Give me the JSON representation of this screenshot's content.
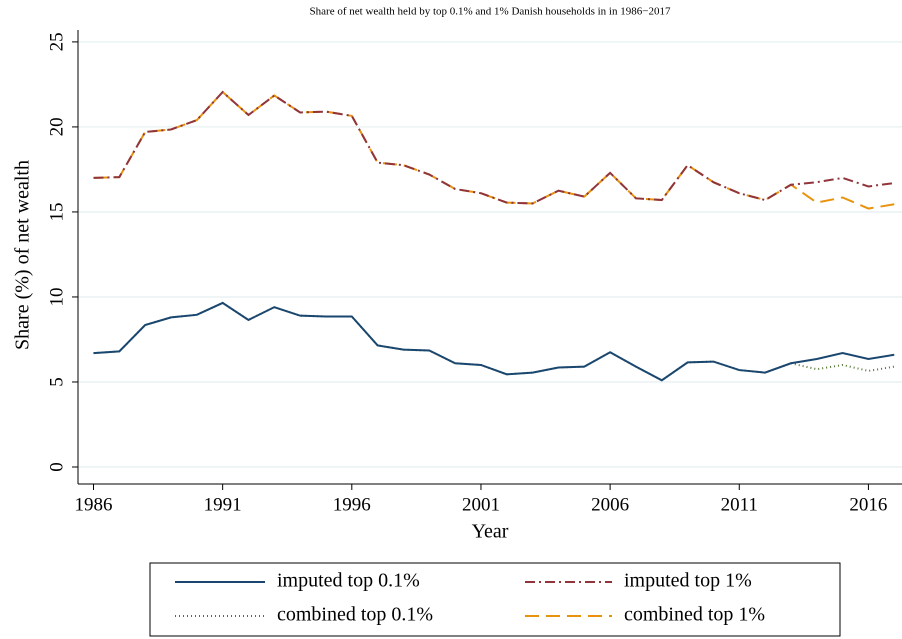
{
  "chart_data": {
    "type": "line",
    "title": "Share of net wealth held by top 0.1% and 1% Danish households in in 1986−2017",
    "x_label": "Year",
    "y_label": "Share (%) of net wealth",
    "x": [
      1986,
      1987,
      1988,
      1989,
      1990,
      1991,
      1992,
      1993,
      1994,
      1995,
      1996,
      1997,
      1998,
      1999,
      2000,
      2001,
      2002,
      2003,
      2004,
      2005,
      2006,
      2007,
      2008,
      2009,
      2010,
      2011,
      2012,
      2013,
      2014,
      2015,
      2016,
      2017
    ],
    "xlim": [
      1985.4,
      2017.3
    ],
    "xticks": [
      1986,
      1991,
      1996,
      2001,
      2006,
      2011,
      2016
    ],
    "ylim": [
      -1,
      25.7
    ],
    "yticks": [
      0,
      5,
      10,
      15,
      20,
      25
    ],
    "grid": true,
    "series": [
      {
        "name": "imputed top 0.1%",
        "color": "#1a476f",
        "dash": "solid",
        "values": [
          6.7,
          6.8,
          8.35,
          8.8,
          8.95,
          9.65,
          8.65,
          9.4,
          8.9,
          8.85,
          8.85,
          7.15,
          6.9,
          6.85,
          6.1,
          6.0,
          5.45,
          5.55,
          5.85,
          5.9,
          6.75,
          5.9,
          5.1,
          6.15,
          6.2,
          5.7,
          5.55,
          6.1,
          6.35,
          6.7,
          6.35,
          6.6
        ]
      },
      {
        "name": "imputed top 1%",
        "color": "#90353b",
        "dash": "dashdot",
        "values": [
          17.0,
          17.05,
          19.7,
          19.85,
          20.4,
          22.05,
          20.7,
          21.85,
          20.85,
          20.9,
          20.65,
          17.9,
          17.75,
          17.2,
          16.35,
          16.1,
          15.55,
          15.5,
          16.25,
          15.9,
          17.3,
          15.8,
          15.7,
          17.75,
          16.75,
          16.1,
          15.7,
          16.6,
          16.75,
          17.0,
          16.5,
          16.7
        ]
      },
      {
        "name": "combined top 0.1%",
        "color": "#55752f",
        "dash": "dot",
        "values": [
          6.7,
          6.8,
          8.35,
          8.8,
          8.95,
          9.65,
          8.65,
          9.4,
          8.9,
          8.85,
          8.85,
          7.15,
          6.9,
          6.85,
          6.1,
          6.0,
          5.45,
          5.55,
          5.85,
          5.9,
          6.75,
          5.9,
          5.1,
          6.15,
          6.2,
          5.7,
          5.55,
          6.1,
          5.75,
          6.0,
          5.65,
          5.9
        ]
      },
      {
        "name": "combined top 1%",
        "color": "#e8930e",
        "dash": "dash",
        "values": [
          17.0,
          17.05,
          19.7,
          19.85,
          20.4,
          22.05,
          20.7,
          21.85,
          20.85,
          20.9,
          20.65,
          17.9,
          17.75,
          17.2,
          16.35,
          16.1,
          15.55,
          15.5,
          16.25,
          15.9,
          17.3,
          15.8,
          15.7,
          17.75,
          16.75,
          16.1,
          15.7,
          16.6,
          15.55,
          15.85,
          15.2,
          15.45
        ]
      }
    ]
  }
}
